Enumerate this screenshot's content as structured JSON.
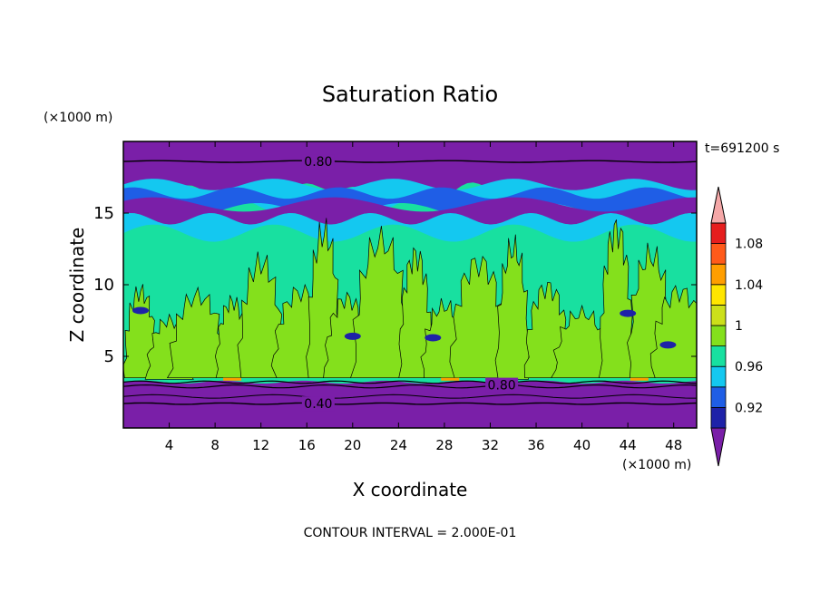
{
  "chart_data": {
    "type": "heatmap",
    "title": "Saturation Ratio",
    "xlabel": "X coordinate",
    "ylabel": "Z coordinate",
    "x_unit": "(×1000 m)",
    "y_unit": "(×1000 m)",
    "time_label": "t=691200 s",
    "footer": "CONTOUR INTERVAL = 2.000E-01",
    "xlim": [
      0,
      50
    ],
    "ylim": [
      0,
      20
    ],
    "x_ticks": [
      4,
      8,
      12,
      16,
      20,
      24,
      28,
      32,
      36,
      40,
      44,
      48
    ],
    "y_ticks": [
      5,
      10,
      15
    ],
    "colorbar": {
      "labels": [
        "0.92",
        "0.96",
        "1",
        "1.04",
        "1.08"
      ],
      "label_values": [
        0.92,
        0.96,
        1.0,
        1.04,
        1.08
      ],
      "levels": [
        0.9,
        0.92,
        0.94,
        0.96,
        0.98,
        1.0,
        1.02,
        1.04,
        1.06,
        1.08,
        1.1
      ],
      "colors": [
        "#7a1fa8",
        "#1e22a8",
        "#1f5ee6",
        "#14c8f0",
        "#18e0a0",
        "#84e01c",
        "#cce01a",
        "#ffe600",
        "#ff9e00",
        "#ff5a1a",
        "#e61e1e",
        "#f5a8a8"
      ]
    },
    "contour_labels": [
      {
        "text": "0.80",
        "x": 17,
        "z": 18.6
      },
      {
        "text": "0.80",
        "x": 33,
        "z": 3.0
      },
      {
        "text": "0.40",
        "x": 17,
        "z": 1.7
      }
    ]
  }
}
